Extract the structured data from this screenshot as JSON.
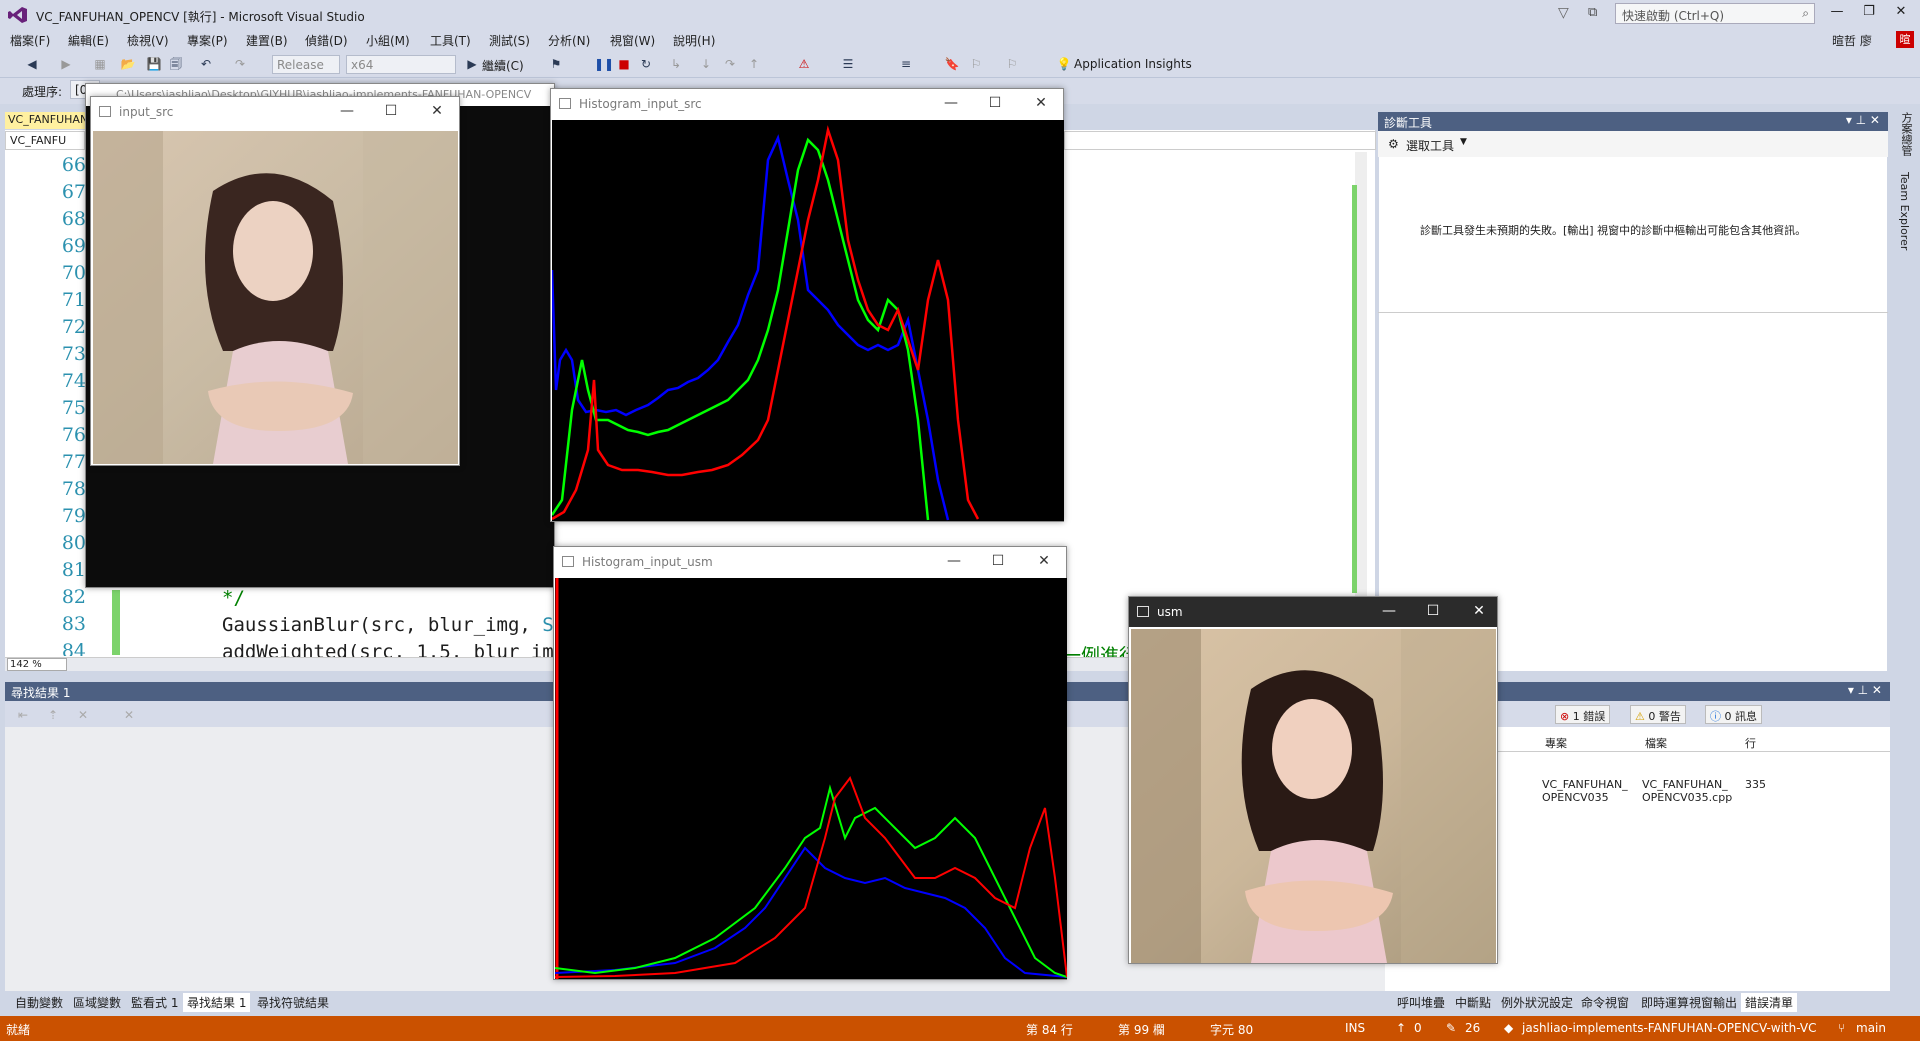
{
  "titlebar": {
    "title": "VC_FANFUHAN_OPENCV [執行] - Microsoft Visual Studio",
    "quick_launch": "快速啟動 (Ctrl+Q)",
    "user": "暄哲 廖",
    "badge": "暄"
  },
  "menu": [
    "檔案(F)",
    "編輯(E)",
    "檢視(V)",
    "專案(P)",
    "建置(B)",
    "偵錯(D)",
    "小組(M)",
    "工具(T)",
    "測試(S)",
    "分析(N)",
    "視窗(W)",
    "說明(H)"
  ],
  "toolbar": {
    "config": "Release",
    "platform": "x64",
    "continue": "繼續(C)",
    "app_insights": "Application Insights"
  },
  "toolbar2": {
    "process_label": "處理序:",
    "process_value": "[0"
  },
  "editor": {
    "doc_tab": "VC_FANFUHAN",
    "file_tab": "VC_FANFU",
    "line_numbers": [
      "66",
      "67",
      "68",
      "69",
      "70",
      "71",
      "72",
      "73",
      "74",
      "75",
      "76",
      "77",
      "78",
      "79",
      "80",
      "81",
      "82",
      "83",
      "84"
    ],
    "code_82": "*/",
    "code_83a": "GaussianBlur(src, blur_img, ",
    "code_83b": "Siz",
    "code_84": "addWeighted(src, 1.5, blur_img",
    "comment_frag": "一例進行",
    "zoom": "142 %"
  },
  "diagnostics": {
    "title": "診斷工具",
    "select_tools": "選取工具",
    "message": "診斷工具發生未預期的失敗。[輸出] 視窗中的診斷中樞輸出可能包含其他資訊。"
  },
  "side_strip": [
    "方案總管",
    "Team Explorer"
  ],
  "find": {
    "title": "尋找結果 1"
  },
  "errors": {
    "errors_count": "1 錯誤",
    "warnings_count": "0 警告",
    "messages_count": "0 訊息",
    "col_project": "專案",
    "col_file": "檔案",
    "col_line": "行",
    "row_project": "VC_FANFUHAN_ OPENCV035",
    "row_file": "VC_FANFUHAN_ OPENCV035.cpp",
    "row_line": "335"
  },
  "bottom_tabs_left": [
    "自動變數",
    "區域變數",
    "監看式 1",
    "尋找結果 1",
    "尋找符號結果"
  ],
  "bottom_tabs_right": [
    "呼叫堆疊",
    "中斷點",
    "例外狀況設定",
    "命令視窗",
    "即時運算視窗",
    "輸出",
    "錯誤清單"
  ],
  "status": {
    "ready": "就緒",
    "line": "第 84 行",
    "col": "第 99 欄",
    "char": "字元 80",
    "ins": "INS",
    "up": "0",
    "pencil": "26",
    "repo": "jashliao-implements-FANFUHAN-OPENCV-with-VC",
    "branch": "main"
  },
  "windows": {
    "console_path": "C:\\Users\\jashliao\\Desktop\\GIYHUB\\jashliao-implements-FANFUHAN-OPENCV",
    "input_src": "input_src",
    "hist_src": "Histogram_input_src",
    "hist_usm": "Histogram_input_usm",
    "usm": "usm"
  },
  "colors": {
    "status": "#ca5100",
    "header": "#4d6082",
    "blue": "#0000ff",
    "green": "#00ff00",
    "red": "#ff0000"
  }
}
